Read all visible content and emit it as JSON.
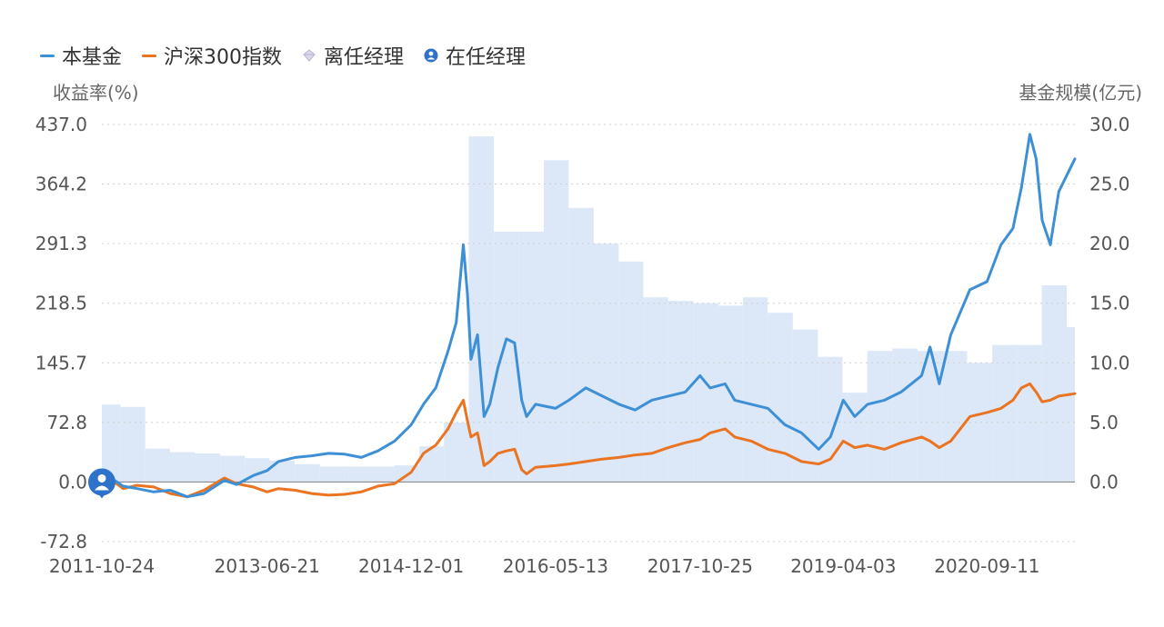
{
  "legend": {
    "fund": "本基金",
    "index": "沪深300指数",
    "former_manager": "离任经理",
    "current_manager": "在任经理"
  },
  "colors": {
    "fund": "#3d8fd6",
    "index": "#ea7421",
    "scale": "#dce8f8",
    "marker": "#2f72c9",
    "grid": "#cfcfcf"
  },
  "chart_data": {
    "type": "line",
    "left_axis": {
      "title": "收益率(%)",
      "ticks": [
        "437.0",
        "364.2",
        "291.3",
        "218.5",
        "145.7",
        "72.8",
        "0.0",
        "-72.8"
      ],
      "range": [
        -72.8,
        437.0
      ]
    },
    "right_axis": {
      "title": "基金规模(亿元)",
      "ticks": [
        "30.0",
        "25.0",
        "20.0",
        "15.0",
        "10.0",
        "5.0",
        "0.0"
      ],
      "range": [
        -5.0,
        30.0
      ]
    },
    "x_axis": {
      "ticks": [
        "2011-10-24",
        "2013-06-21",
        "2014-12-01",
        "2016-05-13",
        "2017-10-25",
        "2019-04-03",
        "2020-09-11"
      ],
      "range": [
        "2011-10-24",
        "2021-07-30"
      ]
    },
    "grid": "horizontal dotted",
    "legend_position": "top-left",
    "series": [
      {
        "name": "本基金",
        "kind": "line",
        "axis": "left",
        "x": [
          "2011-10-24",
          "2011-12-01",
          "2012-01-10",
          "2012-03-01",
          "2012-05-01",
          "2012-07-01",
          "2012-09-01",
          "2012-11-01",
          "2013-01-15",
          "2013-03-01",
          "2013-05-01",
          "2013-06-21",
          "2013-08-01",
          "2013-10-01",
          "2013-12-01",
          "2014-02-01",
          "2014-04-01",
          "2014-06-01",
          "2014-08-01",
          "2014-10-01",
          "2014-12-01",
          "2015-01-15",
          "2015-03-01",
          "2015-04-15",
          "2015-05-15",
          "2015-06-10",
          "2015-06-25",
          "2015-07-08",
          "2015-08-01",
          "2015-08-25",
          "2015-09-15",
          "2015-10-15",
          "2015-11-15",
          "2015-12-15",
          "2016-01-10",
          "2016-01-28",
          "2016-03-01",
          "2016-05-13",
          "2016-07-01",
          "2016-09-01",
          "2016-11-01",
          "2017-01-01",
          "2017-03-01",
          "2017-05-01",
          "2017-07-01",
          "2017-09-01",
          "2017-10-25",
          "2017-12-01",
          "2018-01-25",
          "2018-03-01",
          "2018-05-01",
          "2018-07-01",
          "2018-09-01",
          "2018-11-01",
          "2019-01-03",
          "2019-02-15",
          "2019-04-03",
          "2019-05-15",
          "2019-07-01",
          "2019-09-01",
          "2019-11-01",
          "2020-01-15",
          "2020-02-15",
          "2020-03-20",
          "2020-05-01",
          "2020-07-10",
          "2020-09-11",
          "2020-11-01",
          "2020-12-15",
          "2021-01-15",
          "2021-02-15",
          "2021-03-10",
          "2021-04-01",
          "2021-05-01",
          "2021-06-01",
          "2021-07-30"
        ],
        "values": [
          0.0,
          4.0,
          -5.0,
          -8.0,
          -12.0,
          -10.0,
          -18.0,
          -14.0,
          2.0,
          -3.0,
          8.0,
          14.0,
          25.0,
          30.0,
          32.0,
          35.0,
          34.0,
          30.0,
          38.0,
          50.0,
          70.0,
          95.0,
          115.0,
          160.0,
          195.0,
          290.0,
          230.0,
          150.0,
          180.0,
          80.0,
          95.0,
          140.0,
          175.0,
          170.0,
          100.0,
          80.0,
          95.0,
          90.0,
          100.0,
          115.0,
          105.0,
          95.0,
          88.0,
          100.0,
          105.0,
          110.0,
          130.0,
          115.0,
          120.0,
          100.0,
          95.0,
          90.0,
          70.0,
          60.0,
          40.0,
          55.0,
          100.0,
          80.0,
          95.0,
          100.0,
          110.0,
          130.0,
          165.0,
          120.0,
          180.0,
          235.0,
          245.0,
          290.0,
          310.0,
          360.0,
          425.0,
          395.0,
          320.0,
          290.0,
          355.0,
          395.0
        ]
      },
      {
        "name": "沪深300指数",
        "kind": "line",
        "axis": "left",
        "x": [
          "2011-10-24",
          "2011-12-01",
          "2012-01-10",
          "2012-03-01",
          "2012-05-01",
          "2012-07-01",
          "2012-09-01",
          "2012-11-01",
          "2013-01-15",
          "2013-03-01",
          "2013-05-01",
          "2013-06-21",
          "2013-08-01",
          "2013-10-01",
          "2013-12-01",
          "2014-02-01",
          "2014-04-01",
          "2014-06-01",
          "2014-08-01",
          "2014-10-01",
          "2014-12-01",
          "2015-01-15",
          "2015-03-01",
          "2015-04-15",
          "2015-05-15",
          "2015-06-10",
          "2015-06-25",
          "2015-07-08",
          "2015-08-01",
          "2015-08-25",
          "2015-09-15",
          "2015-10-15",
          "2015-11-15",
          "2015-12-15",
          "2016-01-10",
          "2016-01-28",
          "2016-03-01",
          "2016-05-13",
          "2016-07-01",
          "2016-09-01",
          "2016-11-01",
          "2017-01-01",
          "2017-03-01",
          "2017-05-01",
          "2017-07-01",
          "2017-09-01",
          "2017-10-25",
          "2017-12-01",
          "2018-01-25",
          "2018-03-01",
          "2018-05-01",
          "2018-07-01",
          "2018-09-01",
          "2018-11-01",
          "2019-01-03",
          "2019-02-15",
          "2019-04-03",
          "2019-05-15",
          "2019-07-01",
          "2019-09-01",
          "2019-11-01",
          "2020-01-15",
          "2020-02-15",
          "2020-03-20",
          "2020-05-01",
          "2020-07-10",
          "2020-09-11",
          "2020-11-01",
          "2020-12-15",
          "2021-01-15",
          "2021-02-15",
          "2021-03-10",
          "2021-04-01",
          "2021-05-01",
          "2021-06-01",
          "2021-07-30"
        ],
        "values": [
          0.0,
          2.0,
          -8.0,
          -4.0,
          -6.0,
          -14.0,
          -18.0,
          -10.0,
          5.0,
          -2.0,
          -6.0,
          -12.0,
          -8.0,
          -10.0,
          -14.0,
          -16.0,
          -15.0,
          -12.0,
          -5.0,
          -2.0,
          12.0,
          35.0,
          45.0,
          65.0,
          85.0,
          100.0,
          75.0,
          55.0,
          60.0,
          20.0,
          25.0,
          35.0,
          38.0,
          40.0,
          15.0,
          10.0,
          18.0,
          20.0,
          22.0,
          25.0,
          28.0,
          30.0,
          33.0,
          35.0,
          42.0,
          48.0,
          52.0,
          60.0,
          65.0,
          55.0,
          50.0,
          40.0,
          35.0,
          25.0,
          22.0,
          28.0,
          50.0,
          42.0,
          45.0,
          40.0,
          48.0,
          55.0,
          50.0,
          42.0,
          50.0,
          80.0,
          85.0,
          90.0,
          100.0,
          115.0,
          120.0,
          110.0,
          98.0,
          100.0,
          105.0,
          108.0
        ]
      },
      {
        "name": "基金规模",
        "kind": "area",
        "axis": "right",
        "x": [
          "2011-10-24",
          "2012-01-01",
          "2012-03-31",
          "2012-06-30",
          "2012-09-30",
          "2012-12-31",
          "2013-03-31",
          "2013-06-30",
          "2013-09-30",
          "2013-12-31",
          "2014-03-31",
          "2014-06-30",
          "2014-09-30",
          "2014-12-31",
          "2015-03-31",
          "2015-06-30",
          "2015-09-30",
          "2015-12-31",
          "2016-03-31",
          "2016-06-30",
          "2016-09-30",
          "2016-12-31",
          "2017-03-31",
          "2017-06-30",
          "2017-09-30",
          "2017-12-31",
          "2018-03-31",
          "2018-06-30",
          "2018-09-30",
          "2018-12-31",
          "2019-03-31",
          "2019-06-30",
          "2019-09-30",
          "2019-12-31",
          "2020-03-31",
          "2020-06-30",
          "2020-09-30",
          "2020-12-31",
          "2021-03-31",
          "2021-06-30"
        ],
        "values": [
          6.5,
          6.3,
          2.8,
          2.5,
          2.4,
          2.2,
          2.0,
          1.8,
          1.5,
          1.3,
          1.3,
          1.3,
          1.4,
          3.0,
          5.0,
          29.0,
          21.0,
          21.0,
          27.0,
          23.0,
          20.0,
          18.5,
          15.5,
          15.2,
          15.0,
          14.8,
          15.5,
          14.2,
          12.8,
          10.5,
          7.5,
          11.0,
          11.2,
          11.0,
          11.0,
          10.0,
          11.5,
          11.5,
          16.5,
          13.0
        ]
      }
    ],
    "manager_marker": {
      "label": "在任经理",
      "x": "2011-10-24",
      "y": 0.0
    }
  }
}
